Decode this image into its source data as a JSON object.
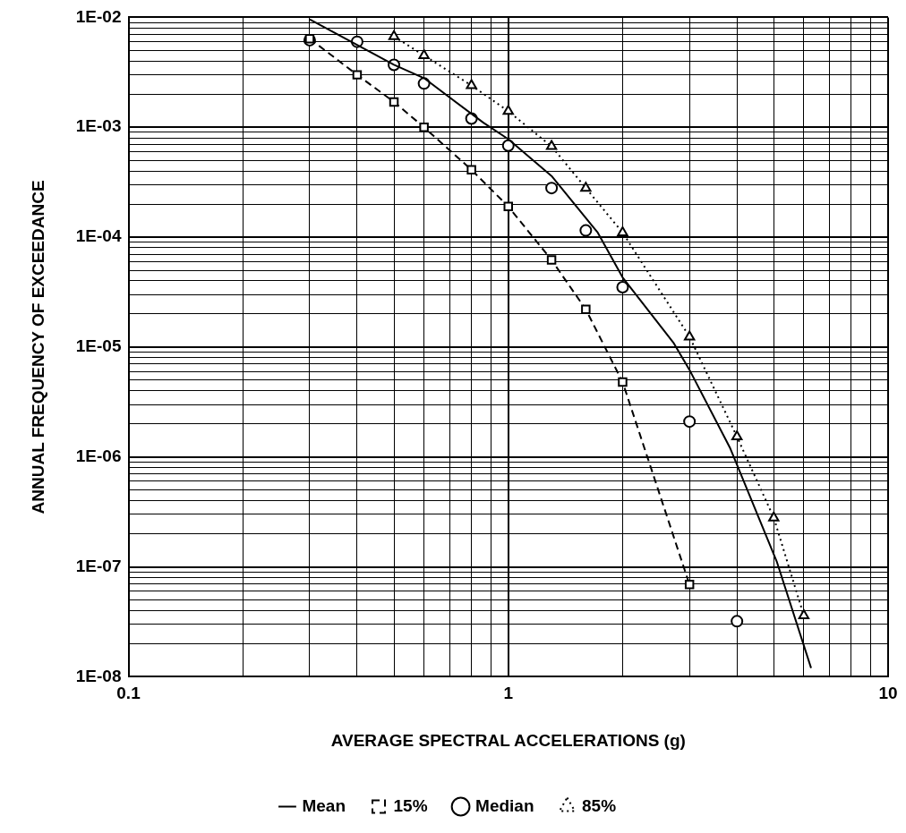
{
  "chart_data": {
    "type": "line",
    "xlabel": "AVERAGE SPECTRAL ACCELERATIONS (g)",
    "ylabel": "ANNUAL FREQUENCY OF EXCEEDANCE",
    "log": "xy",
    "grid": true,
    "legend": "bottom",
    "xlim": [
      0.1,
      10
    ],
    "ylim": [
      1e-08,
      0.01
    ],
    "xticks": [
      {
        "value": 0.1,
        "label": "0.1"
      },
      {
        "value": 0.2,
        "label": null
      },
      {
        "value": 0.3,
        "label": null
      },
      {
        "value": 0.4,
        "label": null
      },
      {
        "value": 0.5,
        "label": null
      },
      {
        "value": 0.6,
        "label": null
      },
      {
        "value": 0.7,
        "label": null
      },
      {
        "value": 0.8,
        "label": null
      },
      {
        "value": 0.9,
        "label": null
      },
      {
        "value": 1,
        "label": "1"
      },
      {
        "value": 2,
        "label": null
      },
      {
        "value": 3,
        "label": null
      },
      {
        "value": 4,
        "label": null
      },
      {
        "value": 5,
        "label": null
      },
      {
        "value": 6,
        "label": null
      },
      {
        "value": 7,
        "label": null
      },
      {
        "value": 8,
        "label": null
      },
      {
        "value": 9,
        "label": null
      },
      {
        "value": 10,
        "label": "10"
      }
    ],
    "yticks": [
      {
        "value": 1e-08,
        "label": "1E-08"
      },
      {
        "value": 2e-08,
        "label": null
      },
      {
        "value": 3e-08,
        "label": null
      },
      {
        "value": 4e-08,
        "label": null
      },
      {
        "value": 5e-08,
        "label": null
      },
      {
        "value": 6e-08,
        "label": null
      },
      {
        "value": 7e-08,
        "label": null
      },
      {
        "value": 8e-08,
        "label": null
      },
      {
        "value": 9e-08,
        "label": null
      },
      {
        "value": 1e-07,
        "label": "1E-07"
      },
      {
        "value": 2e-07,
        "label": null
      },
      {
        "value": 3e-07,
        "label": null
      },
      {
        "value": 4e-07,
        "label": null
      },
      {
        "value": 5e-07,
        "label": null
      },
      {
        "value": 6e-07,
        "label": null
      },
      {
        "value": 7e-07,
        "label": null
      },
      {
        "value": 8e-07,
        "label": null
      },
      {
        "value": 9e-07,
        "label": null
      },
      {
        "value": 1e-06,
        "label": "1E-06"
      },
      {
        "value": 2e-06,
        "label": null
      },
      {
        "value": 3e-06,
        "label": null
      },
      {
        "value": 4e-06,
        "label": null
      },
      {
        "value": 5e-06,
        "label": null
      },
      {
        "value": 6e-06,
        "label": null
      },
      {
        "value": 7e-06,
        "label": null
      },
      {
        "value": 8e-06,
        "label": null
      },
      {
        "value": 9e-06,
        "label": null
      },
      {
        "value": 1e-05,
        "label": "1E-05"
      },
      {
        "value": 2e-05,
        "label": null
      },
      {
        "value": 3e-05,
        "label": null
      },
      {
        "value": 4e-05,
        "label": null
      },
      {
        "value": 5e-05,
        "label": null
      },
      {
        "value": 6e-05,
        "label": null
      },
      {
        "value": 7e-05,
        "label": null
      },
      {
        "value": 8e-05,
        "label": null
      },
      {
        "value": 9e-05,
        "label": null
      },
      {
        "value": 0.0001,
        "label": "1E-04"
      },
      {
        "value": 0.0002,
        "label": null
      },
      {
        "value": 0.0003,
        "label": null
      },
      {
        "value": 0.0004,
        "label": null
      },
      {
        "value": 0.0005,
        "label": null
      },
      {
        "value": 0.0006,
        "label": null
      },
      {
        "value": 0.0007,
        "label": null
      },
      {
        "value": 0.0008,
        "label": null
      },
      {
        "value": 0.0009,
        "label": null
      },
      {
        "value": 0.001,
        "label": "1E-03"
      },
      {
        "value": 0.002,
        "label": null
      },
      {
        "value": 0.003,
        "label": null
      },
      {
        "value": 0.004,
        "label": null
      },
      {
        "value": 0.005,
        "label": null
      },
      {
        "value": 0.006,
        "label": null
      },
      {
        "value": 0.007,
        "label": null
      },
      {
        "value": 0.008,
        "label": null
      },
      {
        "value": 0.009,
        "label": null
      },
      {
        "value": 0.01,
        "label": "1E-02"
      }
    ],
    "series": [
      {
        "name": "Mean",
        "type": "line",
        "color": "#000000",
        "marker": "none",
        "line_style": "solid",
        "x": [
          0.3,
          0.5,
          0.6,
          0.86,
          1.0,
          1.3,
          1.72,
          2.0,
          2.72,
          3.0,
          3.84,
          5.1,
          6.27
        ],
        "values": [
          0.0096,
          0.0037,
          0.0028,
          0.0011,
          0.00078,
          0.00036,
          0.00011,
          4.3e-05,
          1.1e-05,
          6.2e-06,
          1.2e-06,
          1.1e-07,
          1.2e-08
        ]
      },
      {
        "name": "15%",
        "type": "line",
        "color": "#000000",
        "marker": "square",
        "line_style": "dashed",
        "x": [
          0.3,
          0.4,
          0.5,
          0.6,
          0.8,
          1.0,
          1.3,
          1.6,
          2.0,
          3.0
        ],
        "values": [
          0.0064,
          0.003,
          0.0017,
          0.001,
          0.00041,
          0.00019,
          6.2e-05,
          2.2e-05,
          4.8e-06,
          6.9e-08
        ]
      },
      {
        "name": "Median",
        "type": "scatter",
        "color": "#000000",
        "marker": "circle",
        "x": [
          0.3,
          0.4,
          0.5,
          0.6,
          0.8,
          1.0,
          1.3,
          1.6,
          2.0,
          3.0,
          4.0
        ],
        "values": [
          0.0062,
          0.006,
          0.0037,
          0.0025,
          0.0012,
          0.00068,
          0.00028,
          0.000115,
          3.5e-05,
          2.1e-06,
          3.2e-08
        ]
      },
      {
        "name": "85%",
        "type": "line",
        "color": "#000000",
        "marker": "triangle",
        "line_style": "dotted",
        "x": [
          0.5,
          0.6,
          0.8,
          1.0,
          1.3,
          1.6,
          2.0,
          3.0,
          4.0,
          5.0,
          6.0
        ],
        "values": [
          0.0067,
          0.0045,
          0.0024,
          0.0014,
          0.00067,
          0.00028,
          0.00011,
          1.24e-05,
          1.53e-06,
          2.8e-07,
          3.6e-08
        ]
      }
    ]
  }
}
